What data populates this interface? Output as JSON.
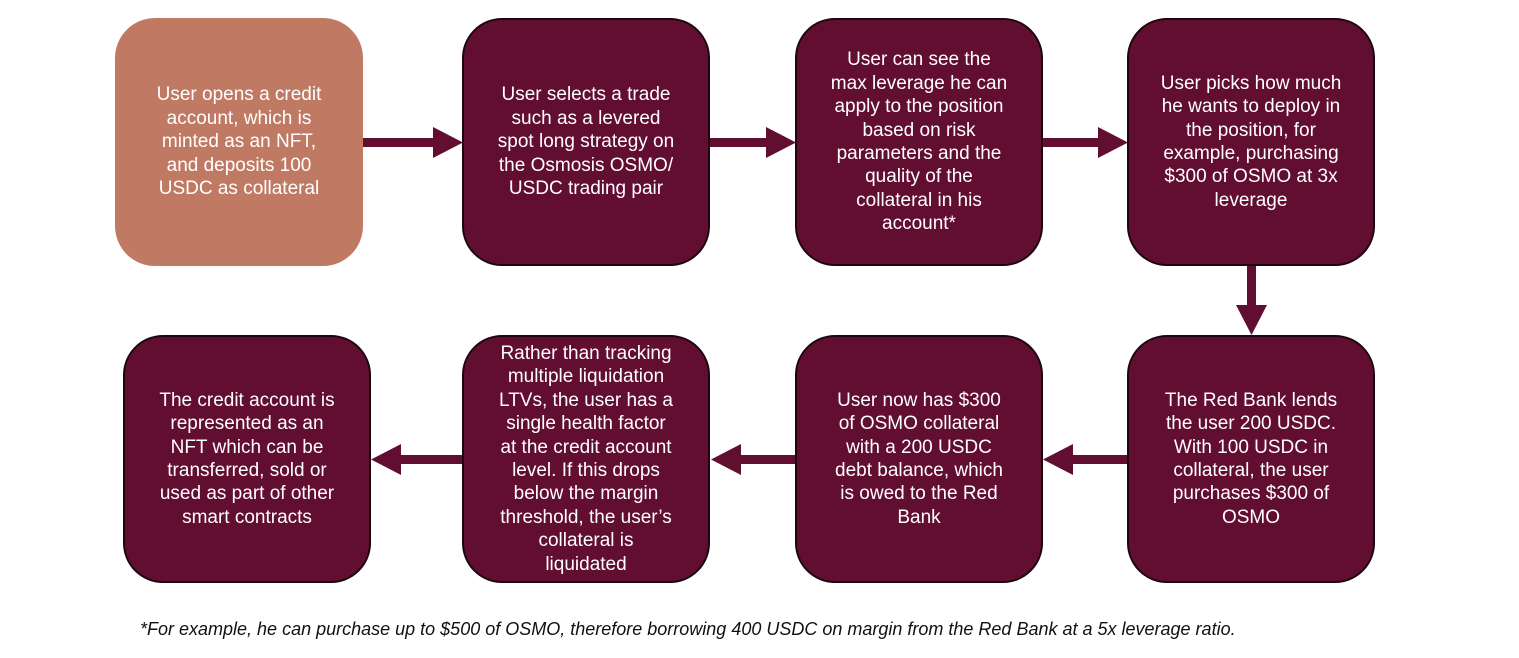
{
  "colors": {
    "start_box": "#c07a64",
    "step_box": "#620e31",
    "box_text": "#ffffff",
    "arrow": "#620e31"
  },
  "steps": [
    {
      "text": "User opens a credit\naccount, which is\nminted as an NFT,\nand deposits 100\nUSDC as collateral"
    },
    {
      "text": "User selects a trade\nsuch as a levered\nspot long strategy on\nthe Osmosis OSMO/\nUSDC trading pair"
    },
    {
      "text": "User can see the\nmax leverage he can\napply to the position\nbased on risk\nparameters and the\nquality of the\ncollateral in his\naccount*"
    },
    {
      "text": "User picks how much\nhe wants to deploy in\nthe position, for\nexample, purchasing\n$300 of OSMO at 3x\nleverage"
    },
    {
      "text": "The Red Bank lends\nthe user 200 USDC.\nWith 100 USDC in\ncollateral, the user\npurchases $300 of\nOSMO"
    },
    {
      "text": "User now has $300\nof OSMO collateral\nwith a 200 USDC\ndebt balance, which\nis owed to the Red\nBank"
    },
    {
      "text": "Rather than tracking\nmultiple liquidation\nLTVs, the user has a\nsingle health factor\nat the credit account\nlevel. If this drops\nbelow the margin\nthreshold, the user’s\ncollateral is\nliquidated"
    },
    {
      "text": "The credit account is\nrepresented as an\nNFT which can be\ntransferred, sold or\nused as part of other\nsmart contracts"
    }
  ],
  "footnote": "*For example, he can purchase up to $500 of OSMO, therefore borrowing 400 USDC on margin from the Red Bank at a 5x leverage ratio."
}
